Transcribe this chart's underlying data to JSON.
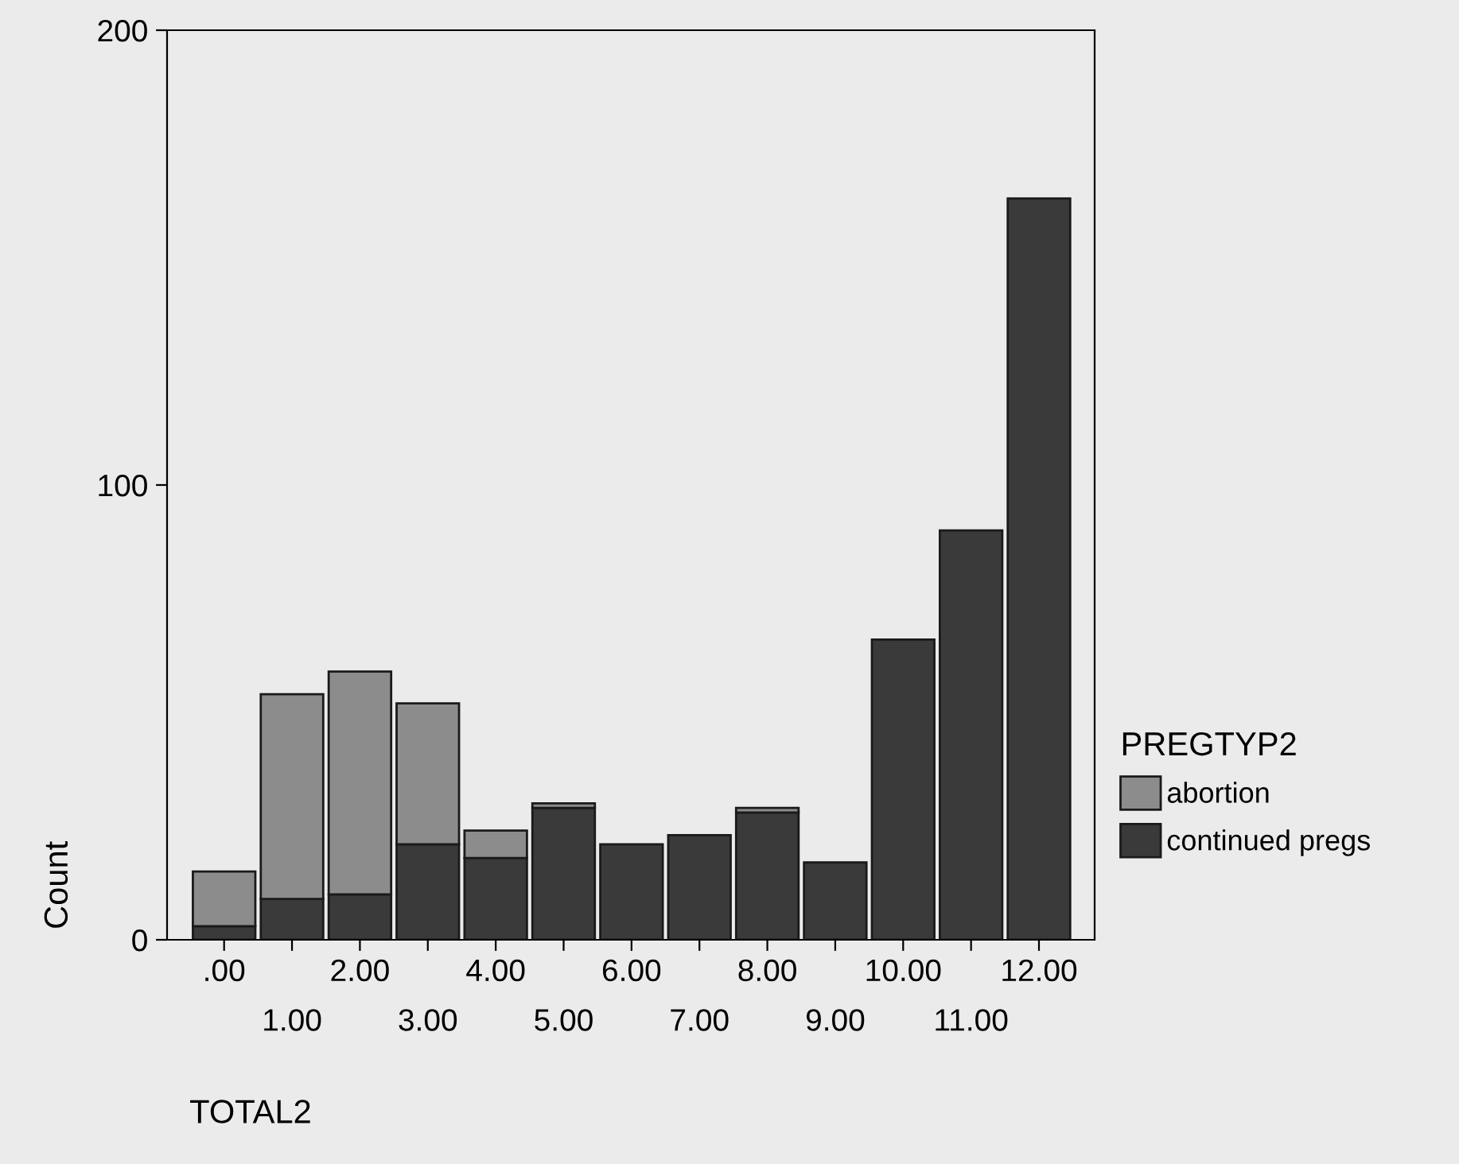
{
  "chart_data": {
    "type": "bar",
    "stacked": true,
    "xlabel": "TOTAL2",
    "ylabel": "Count",
    "legend_title": "PREGTYP2",
    "legend": "right",
    "categories": [
      ".00",
      "1.00",
      "2.00",
      "3.00",
      "4.00",
      "5.00",
      "6.00",
      "7.00",
      "8.00",
      "9.00",
      "10.00",
      "11.00",
      "12.00"
    ],
    "series": [
      {
        "name": "continued pregs",
        "color": "#3a3a3a",
        "values": [
          3,
          9,
          10,
          21,
          18,
          29,
          21,
          23,
          28,
          17,
          66,
          90,
          163
        ]
      },
      {
        "name": "abortion",
        "color": "#8c8c8c",
        "values": [
          12,
          45,
          49,
          31,
          6,
          1,
          null,
          null,
          1,
          null,
          null,
          null,
          null
        ]
      }
    ],
    "ylim": [
      0,
      200
    ],
    "yticks": [
      0,
      100,
      200
    ],
    "grid": false
  }
}
